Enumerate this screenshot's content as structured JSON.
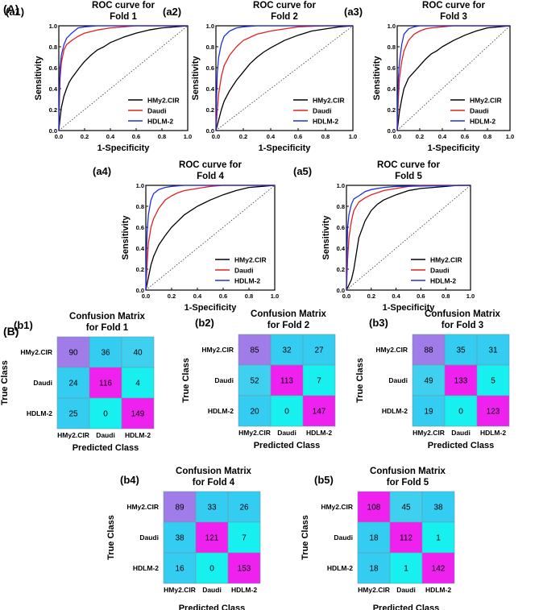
{
  "sections": [
    "(A)",
    "(B)"
  ],
  "chart_data": [
    {
      "type": "line",
      "panel": "(a1)",
      "title": [
        "ROC curve for",
        "Fold 1"
      ],
      "xlabel": "1-Specificity",
      "ylabel": "Sensitivity",
      "xlim": [
        0,
        1
      ],
      "ylim": [
        0,
        1
      ],
      "ticks": [
        "0.0",
        "0.2",
        "0.4",
        "0.6",
        "0.8",
        "1.0"
      ],
      "legend": "bottom-right",
      "diagonal": "dotted",
      "series": [
        {
          "name": "HMy2.CIR",
          "color": "#000000",
          "x": [
            0,
            0.01,
            0.02,
            0.04,
            0.06,
            0.08,
            0.1,
            0.13,
            0.16,
            0.2,
            0.25,
            0.3,
            0.35,
            0.4,
            0.5,
            0.6,
            0.7,
            0.8,
            0.9,
            1.0
          ],
          "y": [
            0,
            0.12,
            0.22,
            0.33,
            0.4,
            0.46,
            0.5,
            0.55,
            0.6,
            0.66,
            0.72,
            0.77,
            0.8,
            0.84,
            0.89,
            0.93,
            0.96,
            0.98,
            0.99,
            1.0
          ]
        },
        {
          "name": "Daudi",
          "color": "#e02020",
          "x": [
            0,
            0.005,
            0.01,
            0.02,
            0.04,
            0.06,
            0.1,
            0.15,
            0.2,
            0.3,
            0.4,
            0.5,
            0.6,
            1.0
          ],
          "y": [
            0,
            0.3,
            0.5,
            0.65,
            0.77,
            0.82,
            0.86,
            0.9,
            0.93,
            0.96,
            0.98,
            0.99,
            1.0,
            1.0
          ]
        },
        {
          "name": "HDLM-2",
          "color": "#1f2fe0",
          "x": [
            0,
            0.005,
            0.01,
            0.02,
            0.04,
            0.06,
            0.1,
            0.15,
            0.2,
            0.3,
            1.0
          ],
          "y": [
            0,
            0.4,
            0.6,
            0.72,
            0.82,
            0.88,
            0.93,
            0.98,
            0.99,
            1.0,
            1.0
          ]
        }
      ]
    },
    {
      "type": "line",
      "panel": "(a2)",
      "title": [
        "ROC curve for",
        "Fold 2"
      ],
      "xlabel": "1-Specificity",
      "ylabel": "Sensitivity",
      "xlim": [
        0,
        1
      ],
      "ylim": [
        0,
        1
      ],
      "ticks": [
        "0.0",
        "0.2",
        "0.4",
        "0.6",
        "0.8",
        "1.0"
      ],
      "legend": "bottom-right",
      "diagonal": "dotted",
      "series": [
        {
          "name": "HMy2.CIR",
          "color": "#000000",
          "x": [
            0,
            0.02,
            0.04,
            0.06,
            0.1,
            0.15,
            0.2,
            0.25,
            0.3,
            0.35,
            0.4,
            0.5,
            0.6,
            0.7,
            0.8,
            0.9,
            1.0
          ],
          "y": [
            0,
            0.1,
            0.2,
            0.28,
            0.38,
            0.48,
            0.56,
            0.64,
            0.7,
            0.75,
            0.79,
            0.86,
            0.91,
            0.95,
            0.97,
            0.99,
            1.0
          ]
        },
        {
          "name": "Daudi",
          "color": "#e02020",
          "x": [
            0,
            0.01,
            0.02,
            0.04,
            0.06,
            0.1,
            0.15,
            0.2,
            0.3,
            0.4,
            0.5,
            0.6,
            0.8,
            1.0
          ],
          "y": [
            0,
            0.2,
            0.35,
            0.52,
            0.62,
            0.72,
            0.8,
            0.86,
            0.92,
            0.95,
            0.97,
            0.99,
            1.0,
            1.0
          ]
        },
        {
          "name": "HDLM-2",
          "color": "#1f2fe0",
          "x": [
            0,
            0.005,
            0.01,
            0.02,
            0.04,
            0.06,
            0.1,
            0.15,
            0.2,
            0.3,
            1.0
          ],
          "y": [
            0,
            0.35,
            0.55,
            0.7,
            0.83,
            0.9,
            0.95,
            0.98,
            0.99,
            1.0,
            1.0
          ]
        }
      ]
    },
    {
      "type": "line",
      "panel": "(a3)",
      "title": [
        "ROC curve for",
        "Fold 3"
      ],
      "xlabel": "1-Specificity",
      "ylabel": "Sensitivity",
      "xlim": [
        0,
        1
      ],
      "ylim": [
        0,
        1
      ],
      "ticks": [
        "0.0",
        "0.2",
        "0.4",
        "0.6",
        "0.8",
        "1.0"
      ],
      "legend": "bottom-right",
      "diagonal": "dotted",
      "series": [
        {
          "name": "HMy2.CIR",
          "color": "#000000",
          "x": [
            0,
            0.02,
            0.04,
            0.06,
            0.1,
            0.15,
            0.2,
            0.25,
            0.3,
            0.35,
            0.4,
            0.5,
            0.6,
            0.7,
            0.8,
            0.9,
            1.0
          ],
          "y": [
            0,
            0.18,
            0.3,
            0.4,
            0.5,
            0.56,
            0.62,
            0.68,
            0.73,
            0.76,
            0.8,
            0.86,
            0.91,
            0.95,
            0.98,
            0.99,
            1.0
          ]
        },
        {
          "name": "Daudi",
          "color": "#e02020",
          "x": [
            0,
            0.01,
            0.02,
            0.04,
            0.06,
            0.1,
            0.15,
            0.2,
            0.25,
            0.3,
            0.4,
            0.5,
            1.0
          ],
          "y": [
            0,
            0.3,
            0.5,
            0.66,
            0.76,
            0.86,
            0.92,
            0.95,
            0.97,
            0.98,
            0.99,
            1.0,
            1.0
          ]
        },
        {
          "name": "HDLM-2",
          "color": "#1f2fe0",
          "x": [
            0,
            0.005,
            0.01,
            0.02,
            0.04,
            0.06,
            0.1,
            0.15,
            0.2,
            1.0
          ],
          "y": [
            0,
            0.3,
            0.5,
            0.65,
            0.82,
            0.92,
            0.97,
            0.99,
            1.0,
            1.0
          ]
        }
      ]
    },
    {
      "type": "line",
      "panel": "(a4)",
      "title": [
        "ROC curve for",
        "Fold 4"
      ],
      "xlabel": "1-Specificity",
      "ylabel": "Sensitivity",
      "xlim": [
        0,
        1
      ],
      "ylim": [
        0,
        1
      ],
      "ticks": [
        "0.0",
        "0.2",
        "0.4",
        "0.6",
        "0.8",
        "1.0"
      ],
      "legend": "bottom-right",
      "diagonal": "dotted",
      "series": [
        {
          "name": "HMy2.CIR",
          "color": "#000000",
          "x": [
            0,
            0.02,
            0.04,
            0.06,
            0.1,
            0.15,
            0.2,
            0.25,
            0.3,
            0.35,
            0.4,
            0.5,
            0.6,
            0.7,
            0.8,
            0.9,
            1.0
          ],
          "y": [
            0,
            0.12,
            0.24,
            0.32,
            0.43,
            0.52,
            0.6,
            0.66,
            0.72,
            0.76,
            0.8,
            0.86,
            0.91,
            0.95,
            0.98,
            0.99,
            1.0
          ]
        },
        {
          "name": "Daudi",
          "color": "#e02020",
          "x": [
            0,
            0.01,
            0.02,
            0.04,
            0.06,
            0.1,
            0.15,
            0.2,
            0.25,
            0.3,
            0.4,
            0.5,
            0.6,
            1.0
          ],
          "y": [
            0,
            0.25,
            0.45,
            0.6,
            0.68,
            0.78,
            0.86,
            0.9,
            0.93,
            0.95,
            0.97,
            0.99,
            1.0,
            1.0
          ]
        },
        {
          "name": "HDLM-2",
          "color": "#1f2fe0",
          "x": [
            0,
            0.005,
            0.01,
            0.02,
            0.04,
            0.06,
            0.1,
            0.15,
            0.2,
            0.3,
            1.0
          ],
          "y": [
            0,
            0.35,
            0.55,
            0.72,
            0.86,
            0.92,
            0.96,
            0.98,
            0.99,
            1.0,
            1.0
          ]
        }
      ]
    },
    {
      "type": "line",
      "panel": "(a5)",
      "title": [
        "ROC curve for",
        "Fold 5"
      ],
      "xlabel": "1-Specificity",
      "ylabel": "Sensitivity",
      "xlim": [
        0,
        1
      ],
      "ylim": [
        0,
        1
      ],
      "ticks": [
        "0.0",
        "0.2",
        "0.4",
        "0.6",
        "0.8",
        "1.0"
      ],
      "legend": "bottom-right",
      "diagonal": "dotted",
      "series": [
        {
          "name": "HMy2.CIR",
          "color": "#000000",
          "x": [
            0,
            0.02,
            0.04,
            0.06,
            0.08,
            0.1,
            0.15,
            0.2,
            0.25,
            0.3,
            0.4,
            0.5,
            0.6,
            0.7,
            0.8,
            0.9,
            1.0
          ],
          "y": [
            0,
            0.05,
            0.1,
            0.2,
            0.35,
            0.5,
            0.66,
            0.76,
            0.82,
            0.86,
            0.91,
            0.95,
            0.97,
            0.98,
            0.99,
            1.0,
            1.0
          ]
        },
        {
          "name": "Daudi",
          "color": "#e02020",
          "x": [
            0,
            0.01,
            0.02,
            0.04,
            0.06,
            0.1,
            0.15,
            0.2,
            0.3,
            0.4,
            0.5,
            0.6,
            1.0
          ],
          "y": [
            0,
            0.3,
            0.5,
            0.66,
            0.76,
            0.84,
            0.88,
            0.91,
            0.95,
            0.97,
            0.99,
            1.0,
            1.0
          ]
        },
        {
          "name": "HDLM-2",
          "color": "#1f2fe0",
          "x": [
            0,
            0.005,
            0.01,
            0.02,
            0.04,
            0.06,
            0.1,
            0.15,
            0.2,
            0.3,
            0.4,
            1.0
          ],
          "y": [
            0,
            0.4,
            0.6,
            0.72,
            0.82,
            0.87,
            0.9,
            0.94,
            0.96,
            0.98,
            0.99,
            1.0
          ]
        }
      ]
    },
    {
      "type": "heatmap",
      "panel": "(b1)",
      "title": [
        "Confusion Matrix",
        "for Fold 1"
      ],
      "xlabel": "Predicted Class",
      "ylabel": "True Class",
      "labels": [
        "HMy2.CIR",
        "Daudi",
        "HDLM-2"
      ],
      "matrix": [
        [
          90,
          36,
          40
        ],
        [
          24,
          116,
          4
        ],
        [
          25,
          0,
          149
        ]
      ]
    },
    {
      "type": "heatmap",
      "panel": "(b2)",
      "title": [
        "Confusion Matrix",
        "for Fold 2"
      ],
      "xlabel": "Predicted Class",
      "ylabel": "True Class",
      "labels": [
        "HMy2.CIR",
        "Daudi",
        "HDLM-2"
      ],
      "matrix": [
        [
          85,
          32,
          27
        ],
        [
          52,
          113,
          7
        ],
        [
          20,
          0,
          147
        ]
      ]
    },
    {
      "type": "heatmap",
      "panel": "(b3)",
      "title": [
        "Confusion Matrix",
        "for Fold 3"
      ],
      "xlabel": "Predicted Class",
      "ylabel": "True Class",
      "labels": [
        "HMy2.CIR",
        "Daudi",
        "HDLM-2"
      ],
      "matrix": [
        [
          88,
          35,
          31
        ],
        [
          49,
          133,
          5
        ],
        [
          19,
          0,
          123
        ]
      ]
    },
    {
      "type": "heatmap",
      "panel": "(b4)",
      "title": [
        "Confusion Matrix",
        "for Fold 4"
      ],
      "xlabel": "Predicted Class",
      "ylabel": "True Class",
      "labels": [
        "HMy2.CIR",
        "Daudi",
        "HDLM-2"
      ],
      "matrix": [
        [
          89,
          33,
          26
        ],
        [
          38,
          121,
          7
        ],
        [
          16,
          0,
          153
        ]
      ]
    },
    {
      "type": "heatmap",
      "panel": "(b5)",
      "title": [
        "Confusion Matrix",
        "for Fold 5"
      ],
      "xlabel": "Predicted Class",
      "ylabel": "True Class",
      "labels": [
        "HMy2.CIR",
        "Daudi",
        "HDLM-2"
      ],
      "matrix": [
        [
          108,
          45,
          38
        ],
        [
          18,
          112,
          1
        ],
        [
          18,
          1,
          142
        ]
      ]
    }
  ]
}
